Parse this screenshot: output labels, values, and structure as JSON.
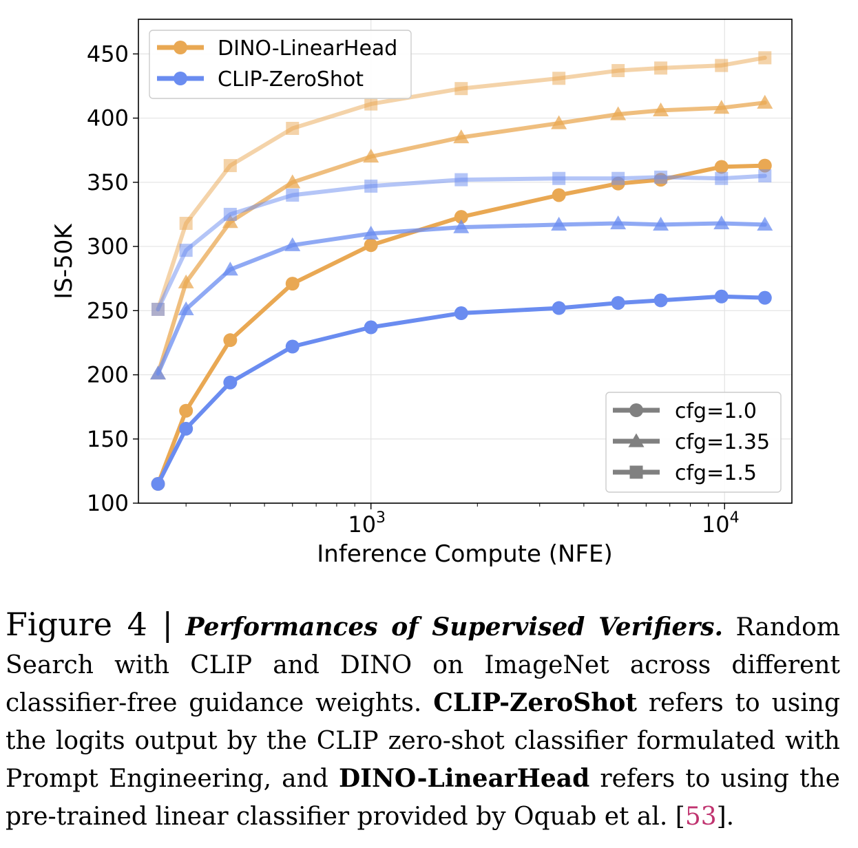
{
  "chart_data": {
    "type": "line",
    "xscale": "log",
    "xlabel": "Inference Compute (NFE)",
    "ylabel": "IS-50K",
    "xlim": [
      220,
      15500
    ],
    "ylim": [
      100,
      477
    ],
    "grid": true,
    "x_ticks": [
      {
        "value": 1000,
        "base": "10",
        "exp": "3"
      },
      {
        "value": 10000,
        "base": "10",
        "exp": "4"
      }
    ],
    "y_ticks": [
      "100",
      "150",
      "200",
      "250",
      "300",
      "350",
      "400",
      "450"
    ],
    "x": [
      250,
      300,
      400,
      600,
      1000,
      1800,
      3400,
      5000,
      6600,
      9800,
      13000
    ],
    "series": [
      {
        "name": "DINO-LinearHead cfg=1.0",
        "verifier": "DINO-LinearHead",
        "cfg": "1.0",
        "marker": "circle",
        "color": "#E9A853",
        "opacity": 1.0,
        "values": [
          115,
          172,
          227,
          271,
          301,
          323,
          340,
          349,
          352,
          362,
          363
        ]
      },
      {
        "name": "DINO-LinearHead cfg=1.35",
        "verifier": "DINO-LinearHead",
        "cfg": "1.35",
        "marker": "triangle",
        "color": "#E9A853",
        "opacity": 0.75,
        "values": [
          201,
          272,
          319,
          350,
          370,
          385,
          396,
          403,
          406,
          408,
          412
        ]
      },
      {
        "name": "DINO-LinearHead cfg=1.5",
        "verifier": "DINO-LinearHead",
        "cfg": "1.5",
        "marker": "square",
        "color": "#E9A853",
        "opacity": 0.5,
        "values": [
          251,
          318,
          363,
          392,
          411,
          423,
          431,
          437,
          439,
          441,
          447
        ]
      },
      {
        "name": "CLIP-ZeroShot cfg=1.0",
        "verifier": "CLIP-ZeroShot",
        "cfg": "1.0",
        "marker": "circle",
        "color": "#6A8CF0",
        "opacity": 1.0,
        "values": [
          115,
          158,
          194,
          222,
          237,
          248,
          252,
          256,
          258,
          261,
          260
        ]
      },
      {
        "name": "CLIP-ZeroShot cfg=1.35",
        "verifier": "CLIP-ZeroShot",
        "cfg": "1.35",
        "marker": "triangle",
        "color": "#6A8CF0",
        "opacity": 0.75,
        "values": [
          201,
          251,
          282,
          301,
          310,
          315,
          317,
          318,
          317,
          318,
          317
        ]
      },
      {
        "name": "CLIP-ZeroShot cfg=1.5",
        "verifier": "CLIP-ZeroShot",
        "cfg": "1.5",
        "marker": "square",
        "color": "#6A8CF0",
        "opacity": 0.5,
        "values": [
          251,
          297,
          325,
          340,
          347,
          352,
          353,
          353,
          354,
          353,
          355
        ]
      }
    ],
    "legend_verifier": {
      "position": "top-left",
      "entries": [
        {
          "label": "DINO-LinearHead",
          "color": "#E9A853"
        },
        {
          "label": "CLIP-ZeroShot",
          "color": "#6A8CF0"
        }
      ]
    },
    "legend_cfg": {
      "position": "bottom-right",
      "color": "#808080",
      "entries": [
        {
          "label": "cfg=1.0",
          "marker": "circle"
        },
        {
          "label": "cfg=1.35",
          "marker": "triangle"
        },
        {
          "label": "cfg=1.5",
          "marker": "square"
        }
      ]
    }
  },
  "caption": {
    "label": "Figure 4 |",
    "title": "Performances of Supervised Verifiers.",
    "text_1": " Random Search with CLIP and DINO on ImageNet across different classifier-free guidance weights. ",
    "term_1": "CLIP-ZeroShot",
    "text_2": " refers to using the logits output by the CLIP zero-shot classifier formulated with Prompt Engineering, and ",
    "term_2": "DINO-LinearHead",
    "text_3": " refers to using the pre-trained linear classifier provided by Oquab et al. [",
    "citation": "53",
    "text_4": "]."
  }
}
